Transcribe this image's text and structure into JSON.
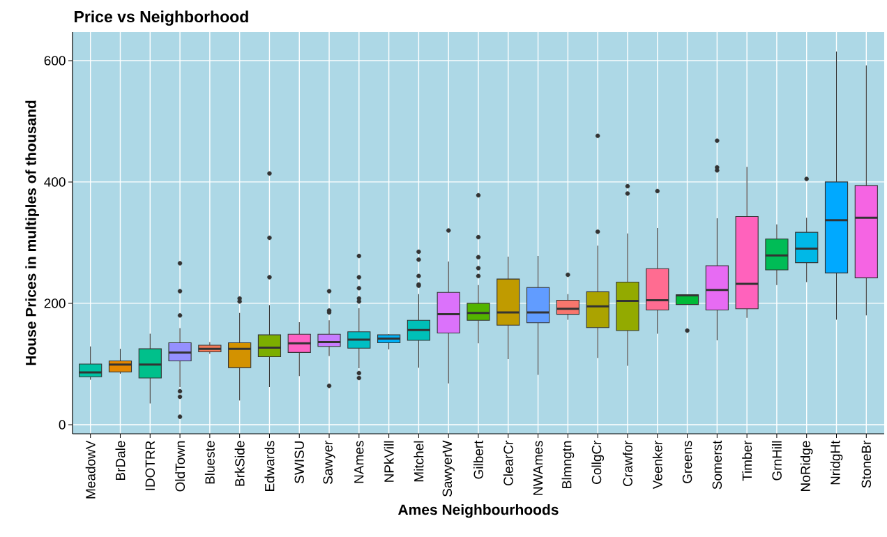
{
  "chart_data": {
    "type": "box",
    "title": "Price vs Neighborhood",
    "xlabel": "Ames Neighbourhoods",
    "ylabel": "House Prices in multiples of thousand",
    "categories": [
      "MeadowV",
      "BrDale",
      "IDOTRR",
      "OldTown",
      "Blueste",
      "BrkSide",
      "Edwards",
      "SWISU",
      "Sawyer",
      "NAmes",
      "NPkVill",
      "Mitchel",
      "SawyerW",
      "Gilbert",
      "ClearCr",
      "NWAmes",
      "Blmngtn",
      "CollgCr",
      "Crawfor",
      "Veenker",
      "Greens",
      "Somerst",
      "Timber",
      "GrnHill",
      "NoRidge",
      "NridgHt",
      "StoneBr"
    ],
    "colors": [
      "#00C1A3",
      "#E58700",
      "#00C08B",
      "#9590FF",
      "#F37B59",
      "#D39200",
      "#7CAE00",
      "#FF61C3",
      "#C77CFF",
      "#00BFC4",
      "#00B0F6",
      "#00C0B8",
      "#DB72FB",
      "#53B400",
      "#C09B00",
      "#619CFF",
      "#F8766D",
      "#ABA300",
      "#93AA00",
      "#FF6C91",
      "#00BA38",
      "#E76BF3",
      "#FF62BC",
      "#00BC56",
      "#00B8E7",
      "#00A9FF",
      "#F564E3"
    ],
    "boxes": [
      {
        "low": 74,
        "q1": 79,
        "median": 86,
        "q3": 100,
        "high": 129
      },
      {
        "low": 84,
        "q1": 87,
        "median": 99,
        "q3": 105,
        "high": 125
      },
      {
        "low": 35,
        "q1": 77,
        "median": 99,
        "q3": 125,
        "high": 150
      },
      {
        "low": 62,
        "q1": 105,
        "median": 119,
        "q3": 135,
        "high": 159,
        "outliers": [
          266,
          220,
          180,
          55,
          46,
          13
        ]
      },
      {
        "low": 117,
        "q1": 120,
        "median": 125,
        "q3": 131,
        "high": 136
      },
      {
        "low": 40,
        "q1": 94,
        "median": 125,
        "q3": 135,
        "high": 184,
        "outliers": [
          208,
          203
        ]
      },
      {
        "low": 62,
        "q1": 112,
        "median": 127,
        "q3": 148,
        "high": 197,
        "outliers": [
          414,
          308,
          243
        ]
      },
      {
        "low": 80,
        "q1": 119,
        "median": 134,
        "q3": 149,
        "high": 169
      },
      {
        "low": 113,
        "q1": 129,
        "median": 136,
        "q3": 149,
        "high": 172,
        "outliers": [
          220,
          188,
          185,
          64
        ]
      },
      {
        "low": 93,
        "q1": 126,
        "median": 140,
        "q3": 153,
        "high": 192,
        "outliers": [
          278,
          243,
          225,
          208,
          203,
          85,
          77
        ]
      },
      {
        "low": 124,
        "q1": 135,
        "median": 142,
        "q3": 148,
        "high": 149
      },
      {
        "low": 94,
        "q1": 139,
        "median": 156,
        "q3": 172,
        "high": 215,
        "outliers": [
          285,
          272,
          245,
          231,
          229
        ]
      },
      {
        "low": 68,
        "q1": 151,
        "median": 182,
        "q3": 218,
        "high": 269,
        "outliers": [
          320
        ]
      },
      {
        "low": 134,
        "q1": 172,
        "median": 184,
        "q3": 200,
        "high": 230,
        "outliers": [
          378,
          309,
          276,
          258,
          245
        ]
      },
      {
        "low": 108,
        "q1": 164,
        "median": 185,
        "q3": 240,
        "high": 277
      },
      {
        "low": 82,
        "q1": 168,
        "median": 185,
        "q3": 226,
        "high": 278
      },
      {
        "low": 173,
        "q1": 182,
        "median": 191,
        "q3": 205,
        "high": 215,
        "outliers": [
          247
        ]
      },
      {
        "low": 110,
        "q1": 160,
        "median": 195,
        "q3": 219,
        "high": 295,
        "outliers": [
          476,
          318
        ]
      },
      {
        "low": 97,
        "q1": 155,
        "median": 204,
        "q3": 235,
        "high": 315,
        "outliers": [
          393,
          381
        ]
      },
      {
        "low": 150,
        "q1": 189,
        "median": 205,
        "q3": 257,
        "high": 324,
        "outliers": [
          385
        ]
      },
      {
        "low": 198,
        "q1": 198,
        "median": 213,
        "q3": 214,
        "high": 214,
        "outliers": [
          155
        ]
      },
      {
        "low": 139,
        "q1": 189,
        "median": 222,
        "q3": 262,
        "high": 340,
        "outliers": [
          468,
          424,
          419
        ]
      },
      {
        "low": 176,
        "q1": 191,
        "median": 232,
        "q3": 343,
        "high": 425
      },
      {
        "low": 230,
        "q1": 255,
        "median": 279,
        "q3": 306,
        "high": 330
      },
      {
        "low": 235,
        "q1": 267,
        "median": 290,
        "q3": 317,
        "high": 341,
        "outliers": [
          405
        ]
      },
      {
        "low": 173,
        "q1": 250,
        "median": 337,
        "q3": 400,
        "high": 615
      },
      {
        "low": 180,
        "q1": 242,
        "median": 341,
        "q3": 394,
        "high": 592
      }
    ],
    "ylim": [
      -15,
      647
    ],
    "yticks": [
      0,
      200,
      400,
      600
    ],
    "grid": true
  }
}
